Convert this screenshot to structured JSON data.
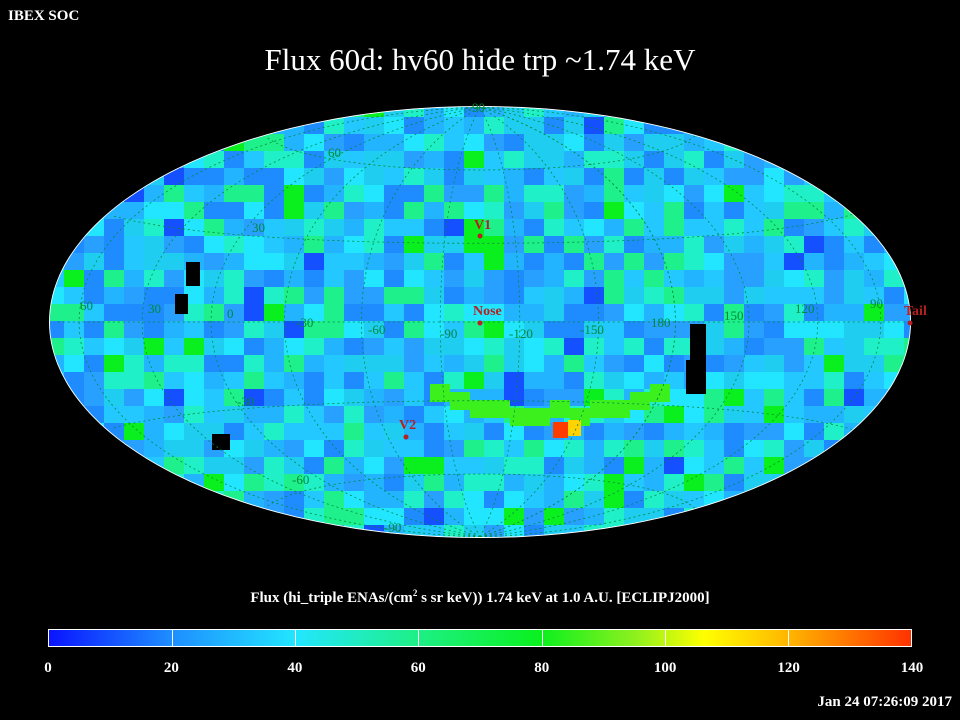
{
  "header": {
    "org": "IBEX SOC",
    "title": "Flux   60d: hv60 hide trp ~1.74 keV"
  },
  "map": {
    "projection": "hammer-aitoff",
    "lon_labels": [
      "60",
      "30",
      "0",
      "-30",
      "-60",
      "-90",
      "-120",
      "-150",
      "180",
      "150",
      "120",
      "90"
    ],
    "lat_labels": [
      "60",
      "30",
      "-30",
      "-60"
    ],
    "pole_labels": {
      "north": "90",
      "south": "-90"
    },
    "markers": [
      {
        "id": "v1",
        "label": "V1",
        "lon": -105,
        "lat": 34
      },
      {
        "id": "nose",
        "label": "Nose",
        "lon": -105,
        "lat": 5
      },
      {
        "id": "v2",
        "label": "V2",
        "lon": -70,
        "lat": -32
      },
      {
        "id": "tail",
        "label": "Tail",
        "lon": 75,
        "lat": -5
      }
    ],
    "colors": {
      "grid": "#008a3a",
      "marker": "#b52020",
      "background": "#000000"
    }
  },
  "colorbar": {
    "caption_pre": "Flux (hi_triple ENAs/(cm",
    "caption_sup": "2",
    "caption_post": " s sr keV))  1.74 keV at 1.0 A.U. [ECLIPJ2000]",
    "min": 0,
    "max": 140,
    "tick_labels": [
      "0",
      "20",
      "40",
      "60",
      "80",
      "100",
      "120",
      "140"
    ]
  },
  "footer": {
    "timestamp": "Jan 24 07:26:09 2017"
  }
}
